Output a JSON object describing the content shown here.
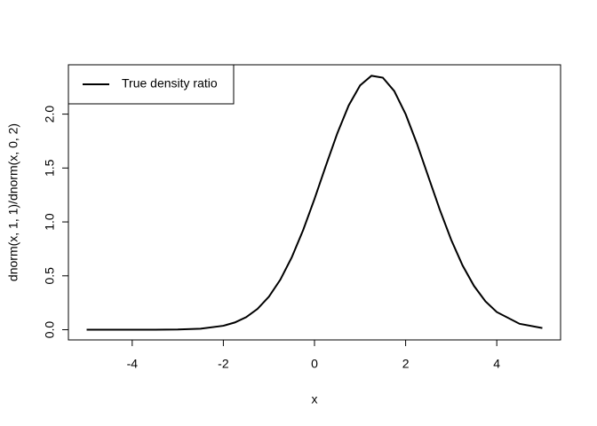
{
  "chart_data": {
    "type": "line",
    "xlabel": "x",
    "ylabel": "dnorm(x, 1, 1)/dnorm(x, 0, 2)",
    "x": [
      -5,
      -4.5,
      -4,
      -3.5,
      -3,
      -2.5,
      -2,
      -1.75,
      -1.5,
      -1.25,
      -1,
      -0.75,
      -0.5,
      -0.25,
      0,
      0.25,
      0.5,
      0.75,
      1,
      1.25,
      1.5,
      1.75,
      2,
      2.25,
      2.5,
      2.75,
      3,
      3.25,
      3.5,
      3.75,
      4,
      4.5,
      5
    ],
    "series": [
      {
        "name": "True density ratio",
        "color": "#000000",
        "values": [
          0,
          0,
          0.0001,
          0.0004,
          0.0021,
          0.0096,
          0.0366,
          0.0669,
          0.1164,
          0.1934,
          0.3067,
          0.464,
          0.67,
          0.923,
          1.2131,
          1.522,
          1.821,
          2.08,
          2.2663,
          2.356,
          2.338,
          2.214,
          2,
          1.724,
          1.418,
          1.113,
          0.8338,
          0.596,
          0.4064,
          0.264,
          0.1642,
          0.055,
          0.0153
        ]
      }
    ],
    "xlim": [
      -5.4,
      5.4
    ],
    "ylim": [
      -0.0945,
      2.4576
    ],
    "xticks": [
      -4,
      -2,
      0,
      2,
      4
    ],
    "yticks": [
      {
        "value": 0,
        "label": "0.0"
      },
      {
        "value": 0.5,
        "label": "0.5"
      },
      {
        "value": 1,
        "label": "1.0"
      },
      {
        "value": 1.5,
        "label": "1.5"
      },
      {
        "value": 2,
        "label": "2.0"
      }
    ],
    "legend": "top-left"
  }
}
